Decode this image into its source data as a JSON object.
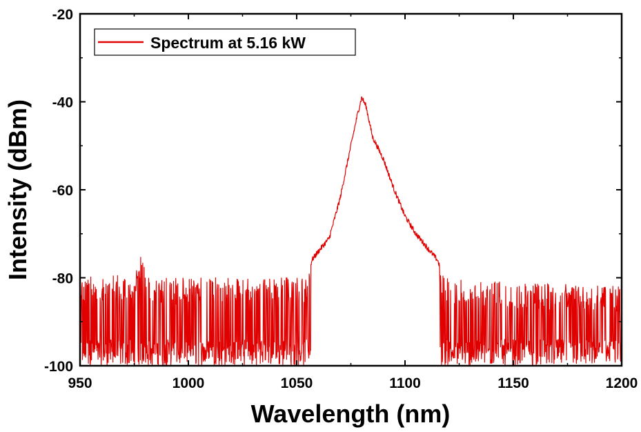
{
  "chart_data": {
    "type": "line",
    "title": "",
    "xlabel": "Wavelength (nm)",
    "ylabel": "Intensity (dBm)",
    "xlim": [
      950,
      1200
    ],
    "ylim": [
      -100,
      -20
    ],
    "x_ticks": [
      950,
      1000,
      1050,
      1100,
      1150,
      1200
    ],
    "y_ticks": [
      -100,
      -80,
      -60,
      -40,
      -20
    ],
    "x_tick_labels": [
      "950",
      "1000",
      "1050",
      "1100",
      "1150",
      "1200"
    ],
    "y_tick_labels": [
      "-100",
      "-80",
      "-60",
      "-40",
      "-20"
    ],
    "legend_position": "top-left",
    "grid": false,
    "series": [
      {
        "name": "Spectrum at 5.16 kW",
        "color": "#e00000",
        "noise_floor_dbm": -100,
        "noise_peak_dbm": -80,
        "envelope": [
          [
            950,
            -80
          ],
          [
            975,
            -79
          ],
          [
            978,
            -75
          ],
          [
            982,
            -80
          ],
          [
            1000,
            -80
          ],
          [
            1030,
            -80
          ],
          [
            1055,
            -80
          ],
          [
            1057,
            -76
          ],
          [
            1060,
            -74
          ],
          [
            1065,
            -71
          ],
          [
            1070,
            -62
          ],
          [
            1075,
            -50
          ],
          [
            1078,
            -43
          ],
          [
            1080,
            -39
          ],
          [
            1082,
            -41
          ],
          [
            1085,
            -48
          ],
          [
            1090,
            -53
          ],
          [
            1095,
            -60
          ],
          [
            1100,
            -66
          ],
          [
            1105,
            -70
          ],
          [
            1110,
            -73
          ],
          [
            1115,
            -76
          ],
          [
            1118,
            -80
          ],
          [
            1150,
            -81
          ],
          [
            1200,
            -82
          ]
        ]
      }
    ]
  }
}
